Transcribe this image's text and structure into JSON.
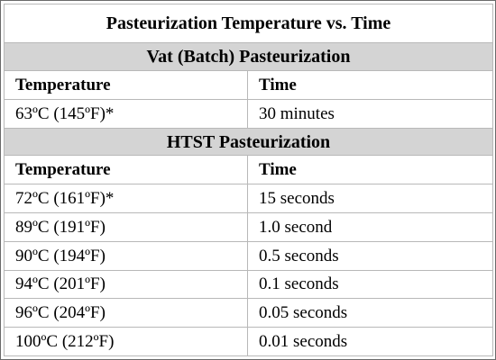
{
  "title": "Pasteurization Temperature vs. Time",
  "sections": [
    {
      "name": "Vat (Batch) Pasteurization",
      "headers": {
        "temperature": "Temperature",
        "time": "Time"
      },
      "rows": [
        {
          "temperature": "63ºC (145ºF)*",
          "time": "30 minutes"
        }
      ]
    },
    {
      "name": "HTST Pasteurization",
      "headers": {
        "temperature": "Temperature",
        "time": "Time"
      },
      "rows": [
        {
          "temperature": "72ºC (161ºF)*",
          "time": "15 seconds"
        },
        {
          "temperature": "89ºC (191ºF)",
          "time": "1.0 second"
        },
        {
          "temperature": "90ºC (194ºF)",
          "time": "0.5 seconds"
        },
        {
          "temperature": "94ºC (201ºF)",
          "time": "0.1 seconds"
        },
        {
          "temperature": "96ºC (204ºF)",
          "time": "0.05 seconds"
        },
        {
          "temperature": "100ºC (212ºF)",
          "time": "0.01 seconds"
        }
      ]
    }
  ]
}
